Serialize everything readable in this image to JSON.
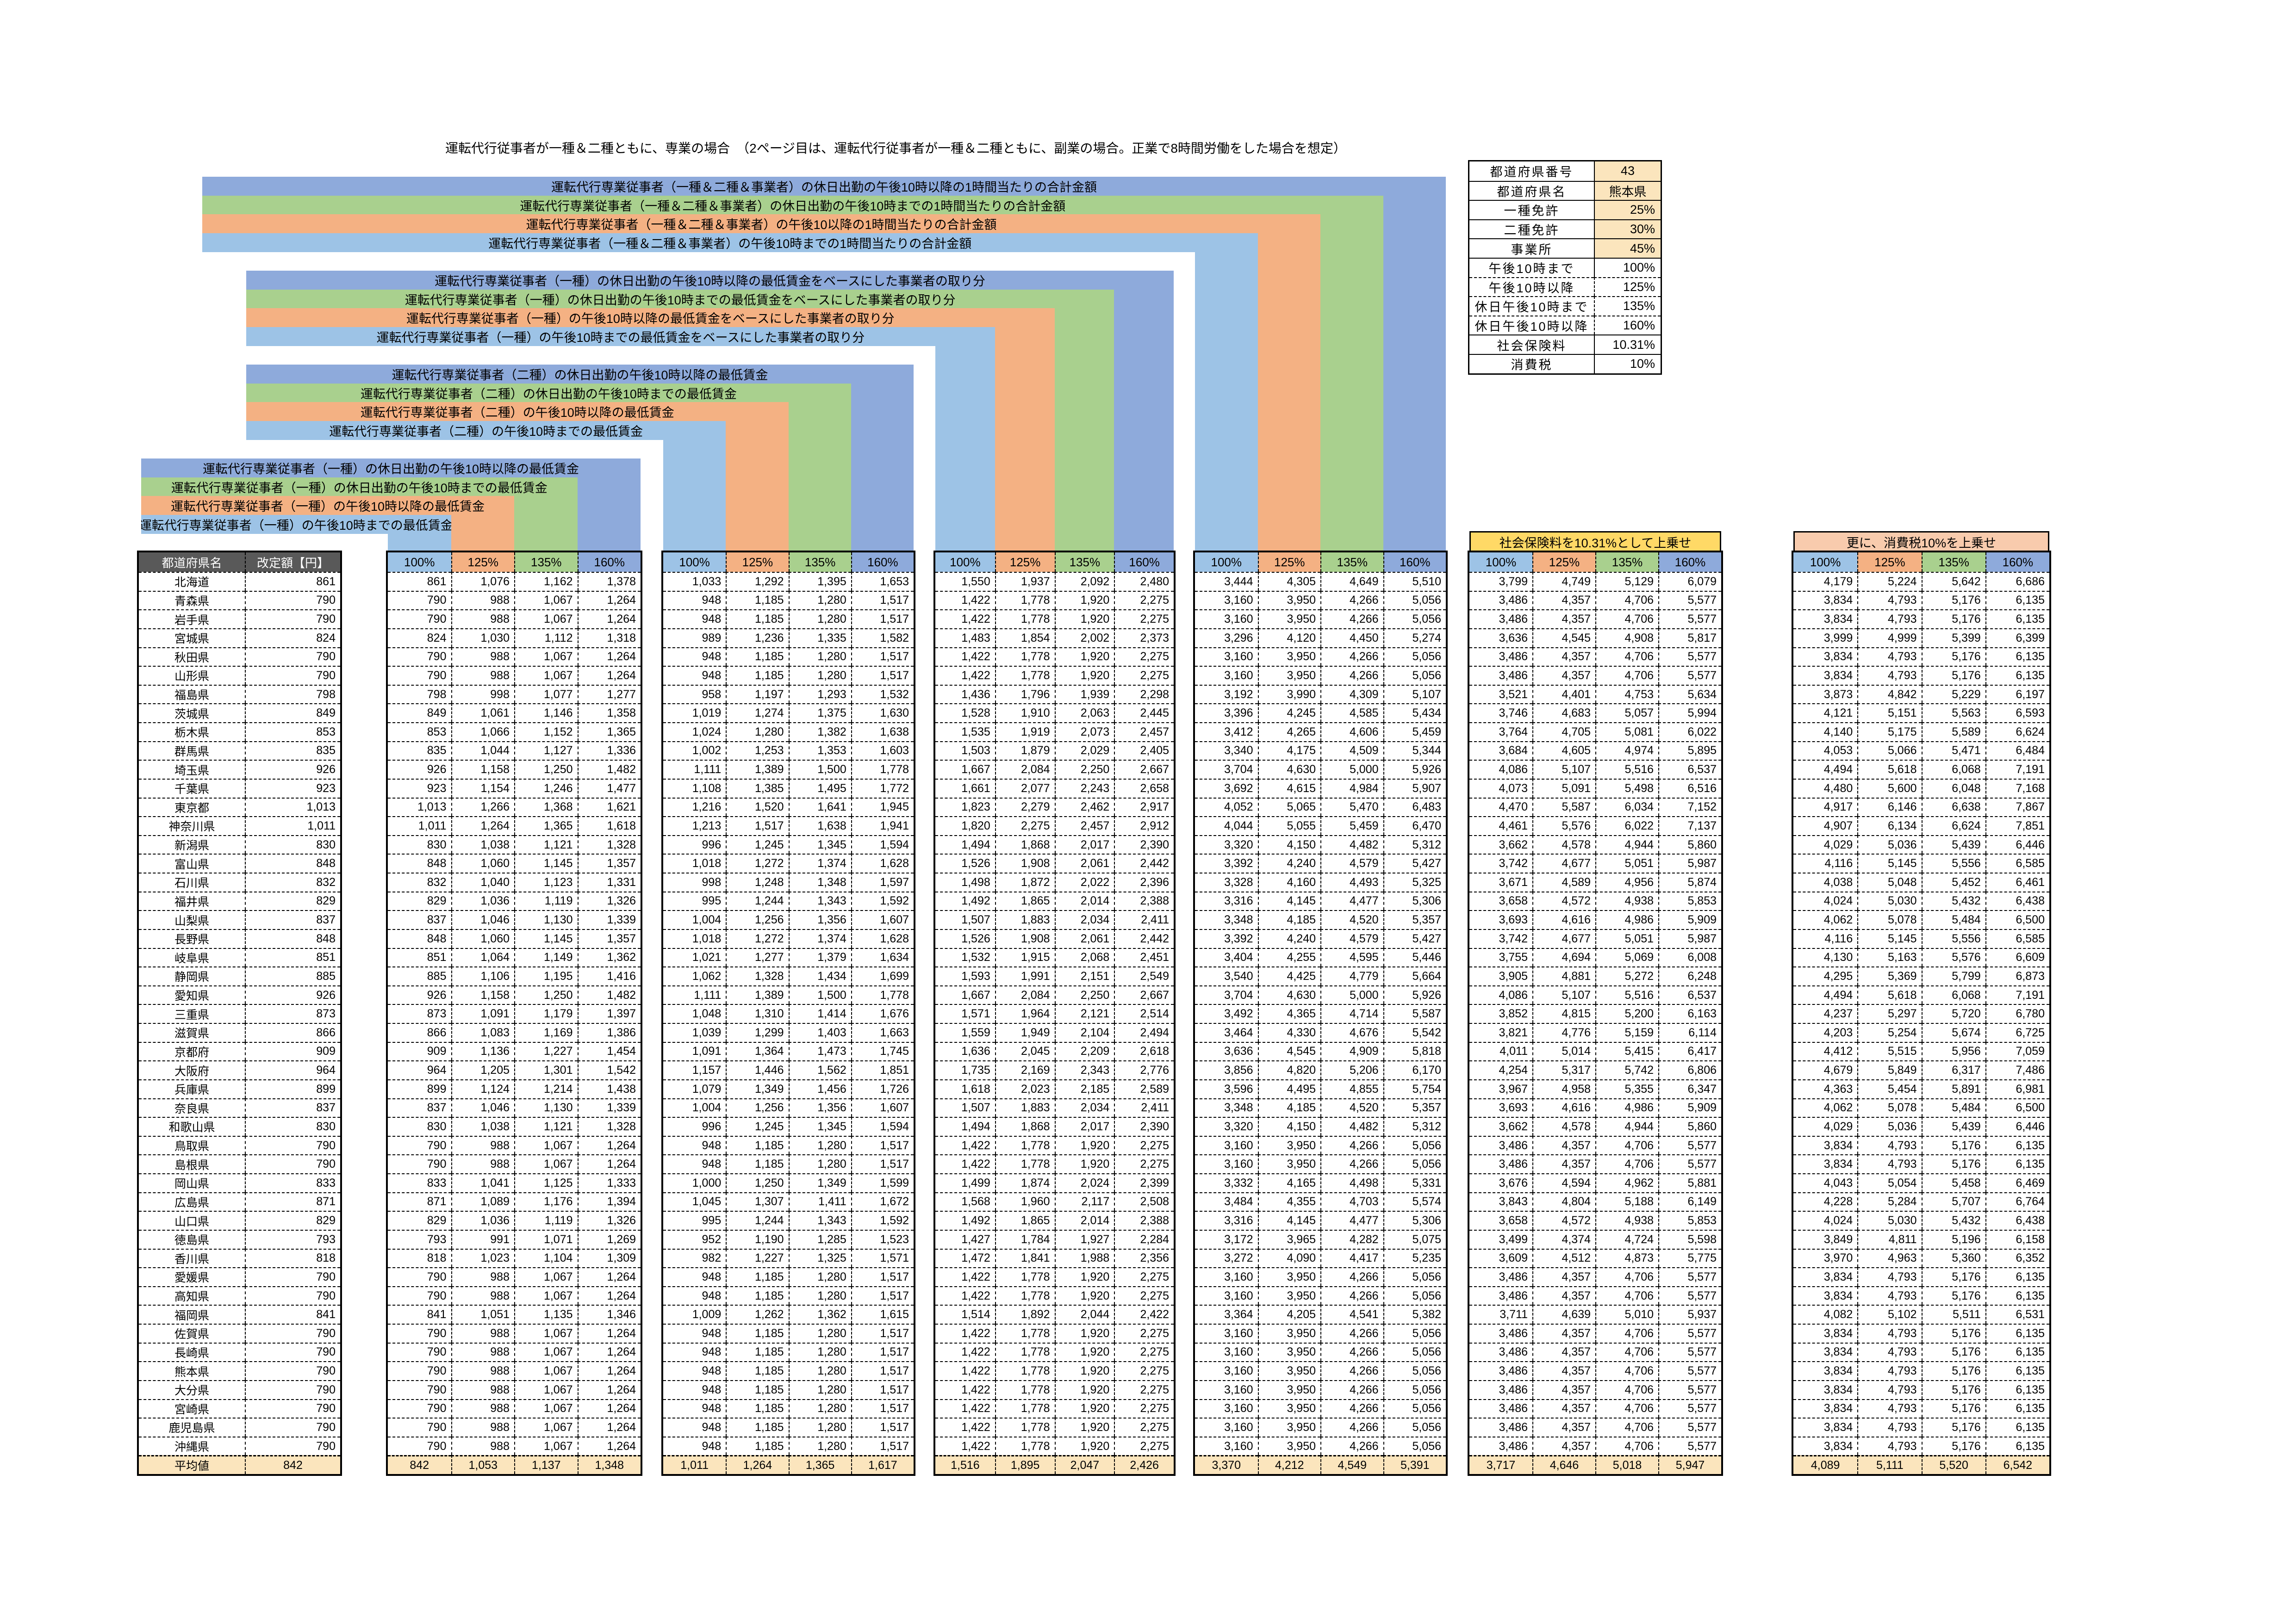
{
  "title": "運転代行従事者が一種＆二種ともに、専業の場合　（2ページ目は、運転代行従事者が一種＆二種ともに、副業の場合。正業で8時間労働をした場合を想定）",
  "banners": [
    {
      "text": "社会保険料を10.31%として上乗せ"
    },
    {
      "text": "更に、消費税10%を上乗せ"
    }
  ],
  "label_groups": [
    {
      "target": "D",
      "labels": [
        "運転代行専業従事者（一種＆二種＆事業者）の休日出勤の午後10時以降の1時間当たりの合計金額",
        "運転代行専業従事者（一種＆二種＆事業者）の休日出勤の午後10時までの1時間当たりの合計金額",
        "運転代行専業従事者（一種＆二種＆事業者）の午後10以降の1時間当たりの合計金額",
        "運転代行専業従事者（一種＆二種＆事業者）の午後10時までの1時間当たりの合計金額"
      ]
    },
    {
      "target": "C",
      "labels": [
        "運転代行専業従事者（一種）の休日出勤の午後10時以降の最低賃金をベースにした事業者の取り分",
        "運転代行専業従事者（一種）の休日出勤の午後10時までの最低賃金をベースにした事業者の取り分",
        "運転代行専業従事者（一種）の午後10時以降の最低賃金をベースにした事業者の取り分",
        "運転代行専業従事者（一種）の午後10時までの最低賃金をベースにした事業者の取り分"
      ]
    },
    {
      "target": "B",
      "labels": [
        "運転代行専業従事者（二種）の休日出勤の午後10時以降の最低賃金",
        "運転代行専業従事者（二種）の休日出勤の午後10時までの最低賃金",
        "運転代行専業従事者（二種）の午後10時以降の最低賃金",
        "運転代行専業従事者（二種）の午後10時までの最低賃金"
      ]
    },
    {
      "target": "A",
      "labels": [
        "運転代行専業従事者（一種）の休日出勤の午後10時以降の最低賃金",
        "運転代行専業従事者（一種）の休日出勤の午後10時までの最低賃金",
        "運転代行専業従事者（一種）の午後10時以降の最低賃金",
        "運転代行専業従事者（一種）の午後10時までの最低賃金"
      ]
    }
  ],
  "info_table": {
    "rows": [
      {
        "label": "都道府県番号",
        "value": "43",
        "highlight": true,
        "align": "center",
        "dashed": false
      },
      {
        "label": "都道府県名",
        "value": "熊本県",
        "highlight": true,
        "align": "center",
        "dashed": false
      },
      {
        "label": "一種免許",
        "value": "25%",
        "highlight": true,
        "align": "right",
        "dashed": false
      },
      {
        "label": "二種免許",
        "value": "30%",
        "highlight": true,
        "align": "right",
        "dashed": false
      },
      {
        "label": "事業所",
        "value": "45%",
        "highlight": true,
        "align": "right",
        "dashed": false
      },
      {
        "label": "午後10時まで",
        "value": "100%",
        "highlight": false,
        "align": "right",
        "dashed": false
      },
      {
        "label": "午後10時以降",
        "value": "125%",
        "highlight": false,
        "align": "right",
        "dashed": true
      },
      {
        "label": "休日午後10時まで",
        "value": "135%",
        "highlight": false,
        "align": "right",
        "dashed": true
      },
      {
        "label": "休日午後10時以降",
        "value": "160%",
        "highlight": false,
        "align": "right",
        "dashed": true
      },
      {
        "label": "社会保険料",
        "value": "10.31%",
        "highlight": false,
        "align": "right",
        "dashed": false
      },
      {
        "label": "消費税",
        "value": "10%",
        "highlight": false,
        "align": "right",
        "dashed": false
      }
    ]
  },
  "table": {
    "name_header": "都道府県名",
    "base_header": "改定額【円】",
    "percent_headers": [
      "100%",
      "125%",
      "135%",
      "160%"
    ],
    "average_label": "平均値",
    "groups": [
      {
        "key": "A",
        "multipliers": [
          1,
          1.25,
          1.35,
          1.6
        ],
        "factor": 1
      },
      {
        "key": "B",
        "multipliers": [
          1.2,
          1.5,
          1.62,
          1.92
        ],
        "factor": 1
      },
      {
        "key": "C",
        "multipliers": [
          1.8,
          2.25,
          2.43,
          2.88
        ],
        "factor": 1
      },
      {
        "key": "D",
        "multipliers": [
          4,
          5,
          5.4,
          6.4
        ],
        "factor": 1
      },
      {
        "key": "E",
        "multipliers": [
          4,
          5,
          5.4,
          6.4
        ],
        "factor": 1.1031
      },
      {
        "key": "F",
        "multipliers": [
          4,
          5,
          5.4,
          6.4
        ],
        "factor": 1.21341
      }
    ],
    "prefectures": [
      {
        "name": "北海道",
        "base": 861
      },
      {
        "name": "青森県",
        "base": 790
      },
      {
        "name": "岩手県",
        "base": 790
      },
      {
        "name": "宮城県",
        "base": 824
      },
      {
        "name": "秋田県",
        "base": 790
      },
      {
        "name": "山形県",
        "base": 790
      },
      {
        "name": "福島県",
        "base": 798
      },
      {
        "name": "茨城県",
        "base": 849
      },
      {
        "name": "栃木県",
        "base": 853
      },
      {
        "name": "群馬県",
        "base": 835
      },
      {
        "name": "埼玉県",
        "base": 926
      },
      {
        "name": "千葉県",
        "base": 923
      },
      {
        "name": "東京都",
        "base": 1013
      },
      {
        "name": "神奈川県",
        "base": 1011
      },
      {
        "name": "新潟県",
        "base": 830
      },
      {
        "name": "富山県",
        "base": 848
      },
      {
        "name": "石川県",
        "base": 832
      },
      {
        "name": "福井県",
        "base": 829
      },
      {
        "name": "山梨県",
        "base": 837
      },
      {
        "name": "長野県",
        "base": 848
      },
      {
        "name": "岐阜県",
        "base": 851
      },
      {
        "name": "静岡県",
        "base": 885
      },
      {
        "name": "愛知県",
        "base": 926
      },
      {
        "name": "三重県",
        "base": 873
      },
      {
        "name": "滋賀県",
        "base": 866
      },
      {
        "name": "京都府",
        "base": 909
      },
      {
        "name": "大阪府",
        "base": 964
      },
      {
        "name": "兵庫県",
        "base": 899
      },
      {
        "name": "奈良県",
        "base": 837
      },
      {
        "name": "和歌山県",
        "base": 830
      },
      {
        "name": "鳥取県",
        "base": 790
      },
      {
        "name": "島根県",
        "base": 790
      },
      {
        "name": "岡山県",
        "base": 833
      },
      {
        "name": "広島県",
        "base": 871
      },
      {
        "name": "山口県",
        "base": 829
      },
      {
        "name": "徳島県",
        "base": 793
      },
      {
        "name": "香川県",
        "base": 818
      },
      {
        "name": "愛媛県",
        "base": 790
      },
      {
        "name": "高知県",
        "base": 790
      },
      {
        "name": "福岡県",
        "base": 841
      },
      {
        "name": "佐賀県",
        "base": 790
      },
      {
        "name": "長崎県",
        "base": 790
      },
      {
        "name": "熊本県",
        "base": 790
      },
      {
        "name": "大分県",
        "base": 790
      },
      {
        "name": "宮崎県",
        "base": 790
      },
      {
        "name": "鹿児島県",
        "base": 790
      },
      {
        "name": "沖縄県",
        "base": 790
      }
    ]
  },
  "colors": {
    "blue_160": "#8EAADB",
    "green_135": "#A9D08E",
    "orange_125": "#F4B183",
    "blue_100": "#9DC3E6",
    "header_gray": "#595959",
    "highlight_cream": "#FBE5BD",
    "banner_yellow": "#FFD966",
    "banner_peach": "#F8CBAD",
    "border_black": "#000000"
  }
}
